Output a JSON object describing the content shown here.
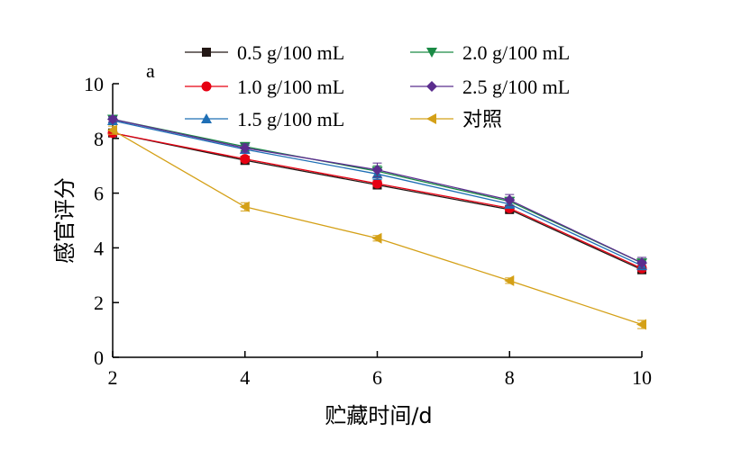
{
  "chart_data": {
    "type": "line",
    "panel_label": "a",
    "title": "",
    "xlabel": "贮藏时间/d",
    "ylabel": "感官评分",
    "x": [
      2,
      4,
      6,
      8,
      10
    ],
    "xlim": [
      2,
      10
    ],
    "ylim": [
      0,
      10
    ],
    "xticks": [
      "2",
      "4",
      "6",
      "8",
      "10"
    ],
    "yticks": [
      "0",
      "2",
      "4",
      "6",
      "8",
      "10"
    ],
    "grid": false,
    "legend_position": "top",
    "series": [
      {
        "name": "0.5 g/100 mL",
        "color": "#231815",
        "marker": "square",
        "values": [
          8.2,
          7.2,
          6.3,
          5.4,
          3.2
        ],
        "errors": [
          0.1,
          0.15,
          0.15,
          0.1,
          0.1
        ]
      },
      {
        "name": "1.0 g/100 mL",
        "color": "#e60012",
        "marker": "circle",
        "values": [
          8.2,
          7.25,
          6.35,
          5.45,
          3.25
        ],
        "errors": [
          0.1,
          0.1,
          0.1,
          0.1,
          0.1
        ]
      },
      {
        "name": "1.5 g/100 mL",
        "color": "#1f6fb5",
        "marker": "triangle-up",
        "values": [
          8.65,
          7.6,
          6.7,
          5.6,
          3.35
        ],
        "errors": [
          0.1,
          0.15,
          0.2,
          0.15,
          0.15
        ]
      },
      {
        "name": "2.0 g/100 mL",
        "color": "#1a8a45",
        "marker": "triangle-down",
        "values": [
          8.7,
          7.7,
          6.8,
          5.7,
          3.45
        ],
        "errors": [
          0.1,
          0.15,
          0.2,
          0.15,
          0.2
        ]
      },
      {
        "name": "2.5 g/100 mL",
        "color": "#5b2d8e",
        "marker": "diamond",
        "values": [
          8.7,
          7.65,
          6.85,
          5.75,
          3.45
        ],
        "errors": [
          0.1,
          0.15,
          0.25,
          0.2,
          0.2
        ]
      },
      {
        "name": "对照",
        "color": "#d4a017",
        "marker": "triangle-left",
        "values": [
          8.3,
          5.5,
          4.35,
          2.8,
          1.2
        ],
        "errors": [
          0.15,
          0.15,
          0.1,
          0.1,
          0.15
        ]
      }
    ]
  }
}
